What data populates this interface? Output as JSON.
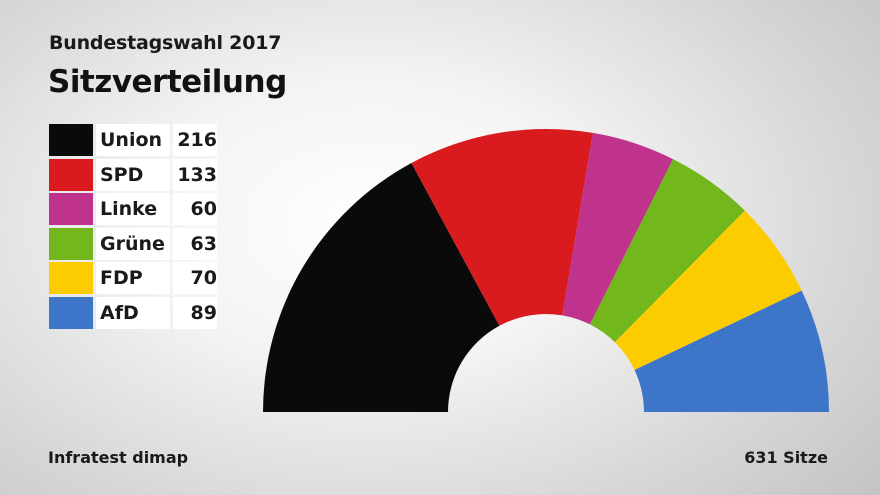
{
  "header": {
    "supertitle": "Bundestagswahl 2017",
    "title": "Sitzverteilung"
  },
  "footer": {
    "source": "Infratest dimap",
    "total_label": "631 Sitze"
  },
  "chart_data": {
    "type": "pie",
    "subtype": "hemicycle",
    "title": "Sitzverteilung",
    "total": 631,
    "categories": [
      "Union",
      "SPD",
      "Linke",
      "Grüne",
      "FDP",
      "AfD"
    ],
    "values": [
      216,
      133,
      60,
      63,
      70,
      89
    ],
    "colors": [
      "#0a0a0a",
      "#d91a1f",
      "#c0338c",
      "#72b81c",
      "#fdcc00",
      "#3d76c9"
    ],
    "legend_position": "top-left"
  }
}
